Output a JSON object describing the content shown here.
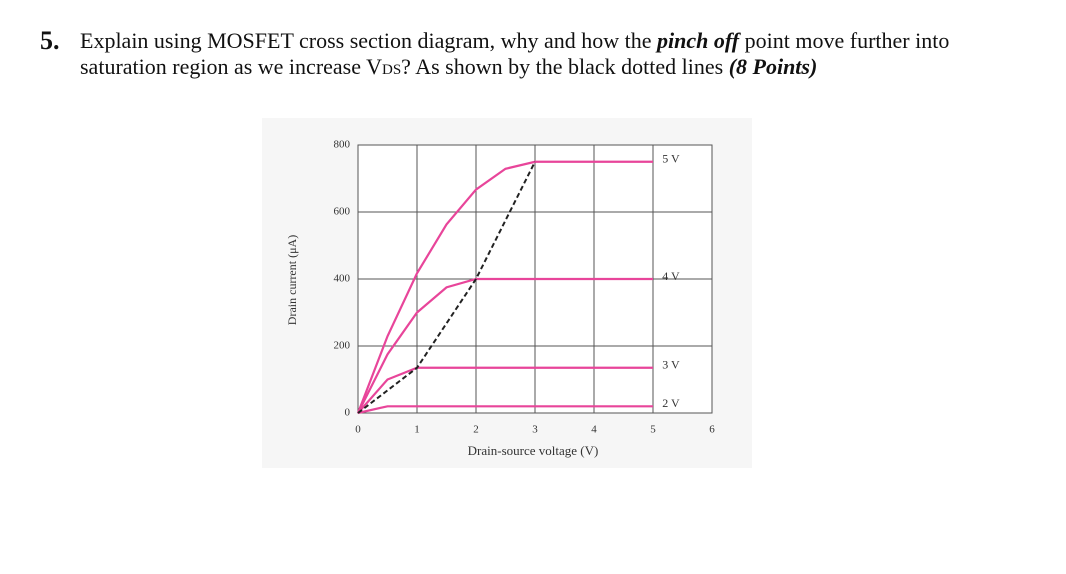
{
  "question": {
    "number": "5.",
    "parts": [
      "Explain using MOSFET cross section diagram, why and how the ",
      "pinch off",
      " point move further into saturation region as we increase V",
      "DS",
      "? As shown by the black dotted lines ",
      "(8 Points)"
    ]
  },
  "chart_data": {
    "type": "line",
    "x_label": "Drain-source voltage (V)",
    "y_label": "Drain current (μA)",
    "x": [
      0,
      0.5,
      1,
      1.5,
      2,
      2.5,
      3,
      4,
      5
    ],
    "series": [
      {
        "name": "5 V",
        "color": "#e8459a",
        "values": [
          0,
          229,
          417,
          563,
          667,
          729,
          750,
          750,
          750
        ]
      },
      {
        "name": "4 V",
        "color": "#e8459a",
        "values": [
          0,
          175,
          300,
          375,
          400,
          400,
          400,
          400,
          400
        ]
      },
      {
        "name": "3 V",
        "color": "#e8459a",
        "values": [
          0,
          100,
          135,
          135,
          135,
          135,
          135,
          135,
          135
        ]
      },
      {
        "name": "2 V",
        "color": "#e8459a",
        "values": [
          0,
          20,
          20,
          20,
          20,
          20,
          20,
          20,
          20
        ]
      }
    ],
    "pinch_off": {
      "x": [
        0,
        1,
        2,
        3
      ],
      "values": [
        0,
        135,
        400,
        750
      ],
      "color": "#222222",
      "dashed": true
    },
    "xlim": [
      0,
      6
    ],
    "xticks": [
      0,
      1,
      2,
      3,
      4,
      5,
      6
    ],
    "ylim": [
      0,
      800
    ],
    "yticks": [
      0,
      200,
      400,
      600,
      800
    ],
    "grid": true
  }
}
